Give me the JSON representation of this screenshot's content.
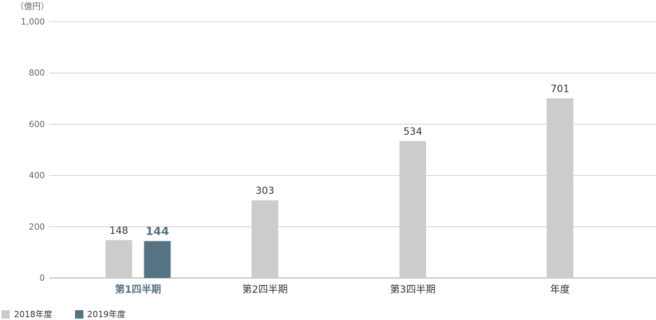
{
  "chart_data": {
    "type": "bar",
    "unit_label": "（億円）",
    "categories": [
      "第1四半期",
      "第2四半期",
      "第3四半期",
      "年度"
    ],
    "highlight_category": 0,
    "ylim": [
      0,
      1000
    ],
    "yticks": [
      "0",
      "200",
      "400",
      "600",
      "800",
      "1,000"
    ],
    "ytick_values": [
      0,
      200,
      400,
      600,
      800,
      1000
    ],
    "grid": true,
    "series": [
      {
        "name": "2018年度",
        "color": "#cccccc",
        "values": [
          148,
          303,
          534,
          701
        ],
        "labels": [
          "148",
          "303",
          "534",
          "701"
        ]
      },
      {
        "name": "2019年度",
        "color": "#557383",
        "values": [
          144,
          null,
          null,
          null
        ],
        "labels": [
          "144",
          "",
          "",
          ""
        ]
      }
    ],
    "legend_position": "bottom-left"
  }
}
